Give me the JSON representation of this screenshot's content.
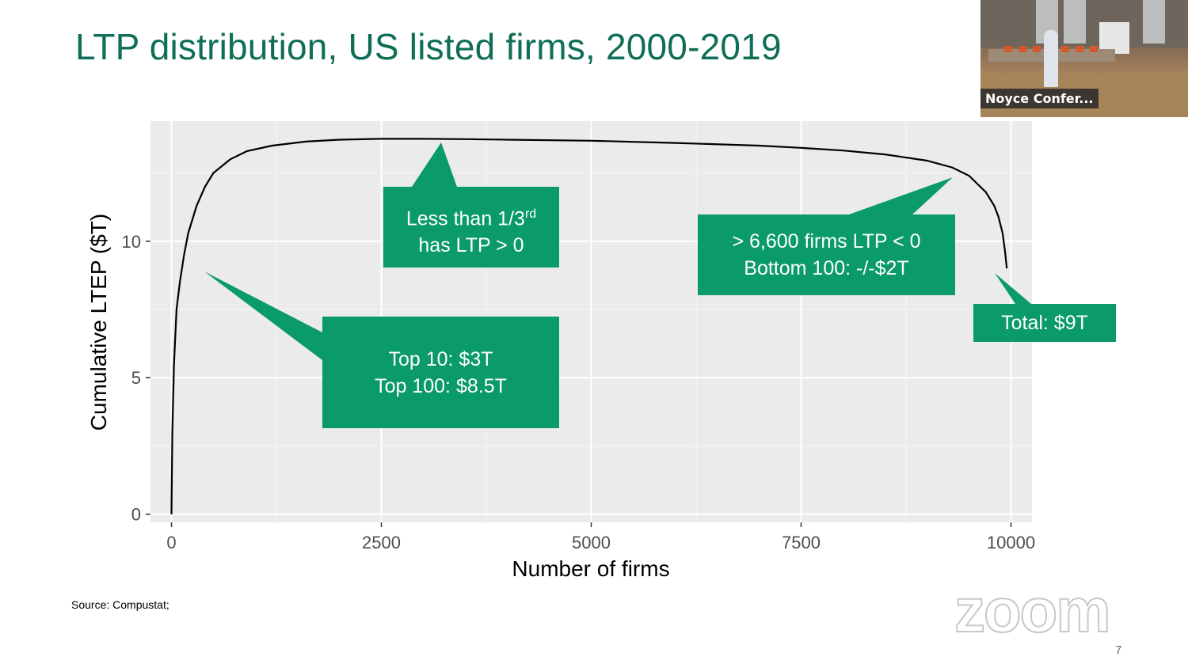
{
  "slide": {
    "title": "LTP distribution, US listed firms, 2000-2019",
    "source": "Source: Compustat;",
    "page_number": "7"
  },
  "video_tile": {
    "participant_label": "Noyce Confer..."
  },
  "watermark": {
    "text": "zoom"
  },
  "callouts": {
    "top": {
      "line1": "Top 10: $3T",
      "line2": "Top 100: $8.5T"
    },
    "less_than": {
      "line1_main": "Less than 1/3",
      "line1_sup": "rd",
      "line2": "has LTP > 0"
    },
    "bottom": {
      "line1": "> 6,600 firms LTP < 0",
      "line2": "Bottom 100: -/-$2T"
    },
    "total": {
      "line1": "Total: $9T"
    }
  },
  "colors": {
    "title": "#0f6e57",
    "callout": "#0a9a6c",
    "panel": "#ebebeb",
    "curve": "#000000"
  },
  "chart_data": {
    "type": "line",
    "xlabel": "Number of firms",
    "ylabel": "Cumulative LTEP ($T)",
    "xlim": [
      -250,
      10250
    ],
    "ylim": [
      -0.3,
      14.4
    ],
    "xticks": [
      0,
      2500,
      5000,
      7500,
      10000
    ],
    "xtick_labels": [
      "0",
      "2500",
      "5000",
      "7500",
      "10000"
    ],
    "yticks": [
      0,
      5,
      10
    ],
    "ytick_labels": [
      "0",
      "5",
      "10"
    ],
    "grid": true,
    "series": [
      {
        "x": [
          0,
          10,
          30,
          60,
          100,
          150,
          200,
          300,
          400,
          500,
          700,
          900,
          1200,
          1600,
          2000,
          2500,
          3000,
          3500,
          4000,
          5000,
          6000,
          7000,
          7500,
          8000,
          8500,
          9000,
          9300,
          9500,
          9700,
          9800,
          9850,
          9900,
          9930,
          9950
        ],
        "y": [
          0,
          3.0,
          5.5,
          7.5,
          8.5,
          9.5,
          10.3,
          11.3,
          12.0,
          12.5,
          13.0,
          13.3,
          13.5,
          13.65,
          13.72,
          13.75,
          13.75,
          13.74,
          13.72,
          13.68,
          13.6,
          13.5,
          13.42,
          13.32,
          13.18,
          12.95,
          12.7,
          12.4,
          11.8,
          11.3,
          10.9,
          10.3,
          9.6,
          9.0
        ]
      }
    ]
  }
}
